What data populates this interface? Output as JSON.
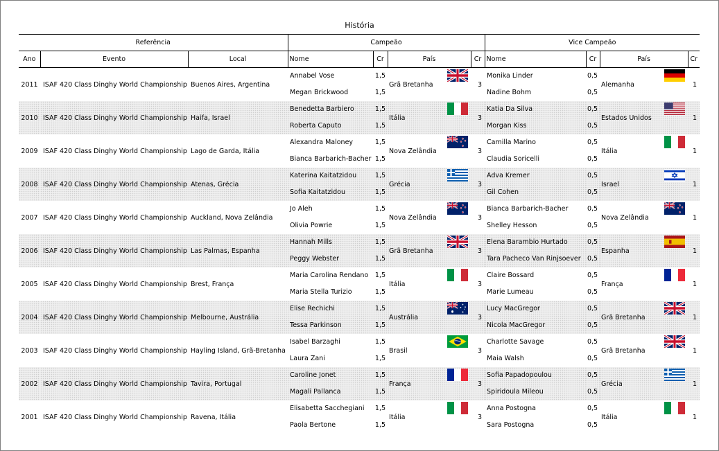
{
  "title": "História",
  "groups": {
    "referencia": "Referência",
    "campeao": "Campeão",
    "vice": "Vice Campeão"
  },
  "headers": {
    "ano": "Ano",
    "evento": "Evento",
    "local": "Local",
    "nome": "Nome",
    "cr": "Cr",
    "pais": "País",
    "cr2": "Cr",
    "vnome": "Nome",
    "vcr": "Cr",
    "vpais": "País",
    "vcr2": "Cr"
  },
  "rows": [
    {
      "ano": "2011",
      "evento": "ISAF 420 Class Dinghy World Championship",
      "local": "Buenos Aires, Argentina",
      "campeao": {
        "nomes": [
          "Annabel Vose",
          "Megan Brickwood"
        ],
        "cr": [
          "1,5",
          "1,5"
        ],
        "pais": "Grã Bretanha",
        "flag": "gb-flag-icon",
        "total": "3"
      },
      "vice": {
        "nomes": [
          "Monika Linder",
          "Nadine Bohm"
        ],
        "cr": [
          "0,5",
          "0,5"
        ],
        "pais": "Alemanha",
        "flag": "de-flag-icon",
        "total": "1"
      }
    },
    {
      "ano": "2010",
      "evento": "ISAF 420 Class Dinghy World Championship",
      "local": "Haifa, Israel",
      "campeao": {
        "nomes": [
          "Benedetta Barbiero",
          "Roberta Caputo"
        ],
        "cr": [
          "1,5",
          "1,5"
        ],
        "pais": "Itália",
        "flag": "it-flag-icon",
        "total": "3"
      },
      "vice": {
        "nomes": [
          "Katia Da Silva",
          "Morgan Kiss"
        ],
        "cr": [
          "0,5",
          "0,5"
        ],
        "pais": "Estados Unidos",
        "flag": "us-flag-icon",
        "total": "1"
      }
    },
    {
      "ano": "2009",
      "evento": "ISAF 420 Class Dinghy World Championship",
      "local": "Lago de Garda, Itália",
      "campeao": {
        "nomes": [
          "Alexandra Maloney",
          "Bianca Barbarich-Bacher"
        ],
        "cr": [
          "1,5",
          "1,5"
        ],
        "pais": "Nova Zelândia",
        "flag": "nz-flag-icon",
        "total": "3"
      },
      "vice": {
        "nomes": [
          "Camilla Marino",
          "Claudia Soricelli"
        ],
        "cr": [
          "0,5",
          "0,5"
        ],
        "pais": "Itália",
        "flag": "it-flag-icon",
        "total": "1"
      }
    },
    {
      "ano": "2008",
      "evento": "ISAF 420 Class Dinghy World Championship",
      "local": "Atenas, Grécia",
      "campeao": {
        "nomes": [
          "Katerina Kaitatzidou",
          "Sofia Kaitatzidou"
        ],
        "cr": [
          "1,5",
          "1,5"
        ],
        "pais": "Grécia",
        "flag": "gr-flag-icon",
        "total": "3"
      },
      "vice": {
        "nomes": [
          "Adva Kremer",
          "Gil Cohen"
        ],
        "cr": [
          "0,5",
          "0,5"
        ],
        "pais": "Israel",
        "flag": "il-flag-icon",
        "total": "1"
      }
    },
    {
      "ano": "2007",
      "evento": "ISAF 420 Class Dinghy World Championship",
      "local": "Auckland, Nova Zelândia",
      "campeao": {
        "nomes": [
          "Jo Aleh",
          "Olivia Powrie"
        ],
        "cr": [
          "1,5",
          "1,5"
        ],
        "pais": "Nova Zelândia",
        "flag": "nz-flag-icon",
        "total": "3"
      },
      "vice": {
        "nomes": [
          "Bianca Barbarich-Bacher",
          "Shelley Hesson"
        ],
        "cr": [
          "0,5",
          "0,5"
        ],
        "pais": "Nova Zelândia",
        "flag": "nz-flag-icon",
        "total": "1"
      }
    },
    {
      "ano": "2006",
      "evento": "ISAF 420 Class Dinghy World Championship",
      "local": "Las Palmas, Espanha",
      "campeao": {
        "nomes": [
          "Hannah Mills",
          "Peggy Webster"
        ],
        "cr": [
          "1,5",
          "1,5"
        ],
        "pais": "Grã Bretanha",
        "flag": "gb-flag-icon",
        "total": "3"
      },
      "vice": {
        "nomes": [
          "Elena Barambio Hurtado",
          "Tara Pacheco Van Rinjsoever"
        ],
        "cr": [
          "0,5",
          "0,5"
        ],
        "pais": "Espanha",
        "flag": "es-flag-icon",
        "total": "1"
      }
    },
    {
      "ano": "2005",
      "evento": "ISAF 420 Class Dinghy World Championship",
      "local": "Brest, França",
      "campeao": {
        "nomes": [
          "Maria Carolina Rendano",
          "Maria Stella Turizio"
        ],
        "cr": [
          "1,5",
          "1,5"
        ],
        "pais": "Itália",
        "flag": "it-flag-icon",
        "total": "3"
      },
      "vice": {
        "nomes": [
          "Claire Bossard",
          "Marie Lumeau"
        ],
        "cr": [
          "0,5",
          "0,5"
        ],
        "pais": "França",
        "flag": "fr-flag-icon",
        "total": "1"
      }
    },
    {
      "ano": "2004",
      "evento": "ISAF 420 Class Dinghy World Championship",
      "local": "Melbourne, Austrália",
      "campeao": {
        "nomes": [
          "Elise Rechichi",
          "Tessa Parkinson"
        ],
        "cr": [
          "1,5",
          "1,5"
        ],
        "pais": "Austrália",
        "flag": "au-flag-icon",
        "total": "3"
      },
      "vice": {
        "nomes": [
          "Lucy MacGregor",
          "Nicola MacGregor"
        ],
        "cr": [
          "0,5",
          "0,5"
        ],
        "pais": "Grã Bretanha",
        "flag": "gb-flag-icon",
        "total": "1"
      }
    },
    {
      "ano": "2003",
      "evento": "ISAF 420 Class Dinghy World Championship",
      "local": "Hayling Island, Grã-Bretanha",
      "campeao": {
        "nomes": [
          "Isabel Barzaghi",
          "Laura Zani"
        ],
        "cr": [
          "1,5",
          "1,5"
        ],
        "pais": "Brasil",
        "flag": "br-flag-icon",
        "total": "3"
      },
      "vice": {
        "nomes": [
          "Charlotte Savage",
          "Maia Walsh"
        ],
        "cr": [
          "0,5",
          "0,5"
        ],
        "pais": "Grã Bretanha",
        "flag": "gb-flag-icon",
        "total": "1"
      }
    },
    {
      "ano": "2002",
      "evento": "ISAF 420 Class Dinghy World Championship",
      "local": "Tavira, Portugal",
      "campeao": {
        "nomes": [
          "Caroline Jonet",
          "Magali Pallanca"
        ],
        "cr": [
          "1,5",
          "1,5"
        ],
        "pais": "França",
        "flag": "fr-flag-icon",
        "total": "3"
      },
      "vice": {
        "nomes": [
          "Sofia Papadopoulou",
          "Spiridoula Mileou"
        ],
        "cr": [
          "0,5",
          "0,5"
        ],
        "pais": "Grécia",
        "flag": "gr-flag-icon",
        "total": "1"
      }
    },
    {
      "ano": "2001",
      "evento": "ISAF 420 Class Dinghy World Championship",
      "local": "Ravena, Itália",
      "campeao": {
        "nomes": [
          "Elisabetta Sacchegiani",
          "Paola Bertone"
        ],
        "cr": [
          "1,5",
          "1,5"
        ],
        "pais": "Itália",
        "flag": "it-flag-icon",
        "total": "3"
      },
      "vice": {
        "nomes": [
          "Anna Postogna",
          "Sara Postogna"
        ],
        "cr": [
          "0,5",
          "0,5"
        ],
        "pais": "Itália",
        "flag": "it-flag-icon",
        "total": "1"
      }
    }
  ]
}
